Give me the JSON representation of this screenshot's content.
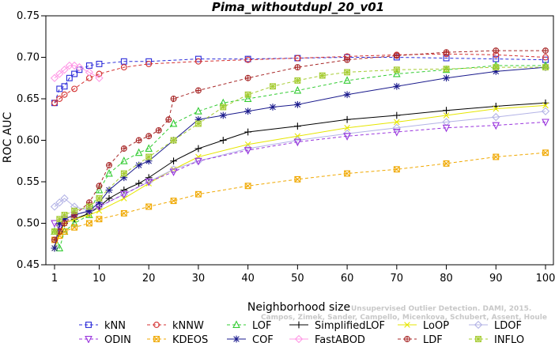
{
  "chart_data": {
    "type": "line",
    "title": "Pima_withoutdupl_20_v01",
    "xlabel": "Neighborhood size",
    "ylabel": "ROC AUC",
    "xlim": [
      1,
      100
    ],
    "ylim": [
      0.45,
      0.75
    ],
    "x_ticks": [
      1,
      10,
      20,
      30,
      40,
      50,
      60,
      70,
      80,
      90,
      100
    ],
    "y_ticks": [
      "0.45",
      "0.50",
      "0.55",
      "0.60",
      "0.65",
      "0.70",
      "0.75"
    ],
    "grid": false,
    "legend_position": "bottom",
    "citation": {
      "line1": "Unsupervised Outlier Detection. DAMI, 2015.",
      "line2": "Campos, Zimek, Sander, Campello, Micenkova, Schubert, Assent, Houle"
    },
    "series": [
      {
        "name": "kNN",
        "color": "#2b2bd9",
        "marker": "square",
        "dash": "4,3",
        "x": [
          1,
          2,
          3,
          4,
          5,
          6,
          8,
          10,
          15,
          20,
          30,
          40,
          50,
          60,
          70,
          80,
          90,
          100
        ],
        "y": [
          0.645,
          0.662,
          0.665,
          0.675,
          0.68,
          0.685,
          0.69,
          0.692,
          0.695,
          0.695,
          0.698,
          0.698,
          0.699,
          0.7,
          0.7,
          0.699,
          0.698,
          0.697
        ]
      },
      {
        "name": "kNNW",
        "color": "#d43030",
        "marker": "circle",
        "dash": "4,3",
        "x": [
          1,
          2,
          3,
          5,
          8,
          10,
          15,
          20,
          30,
          40,
          50,
          60,
          70,
          80,
          90,
          100
        ],
        "y": [
          0.645,
          0.65,
          0.655,
          0.662,
          0.675,
          0.68,
          0.688,
          0.692,
          0.695,
          0.697,
          0.699,
          0.701,
          0.703,
          0.704,
          0.703,
          0.7
        ]
      },
      {
        "name": "LOF",
        "color": "#33cc33",
        "marker": "triangle-up",
        "dash": "4,3",
        "x": [
          1,
          2,
          3,
          5,
          8,
          10,
          12,
          15,
          18,
          20,
          25,
          30,
          35,
          40,
          50,
          60,
          70,
          80,
          90,
          100
        ],
        "y": [
          0.49,
          0.47,
          0.49,
          0.5,
          0.51,
          0.54,
          0.56,
          0.575,
          0.585,
          0.59,
          0.62,
          0.635,
          0.645,
          0.65,
          0.66,
          0.672,
          0.68,
          0.685,
          0.69,
          0.69
        ]
      },
      {
        "name": "SimplifiedLOF",
        "color": "#000000",
        "marker": "plus",
        "dash": "",
        "x": [
          1,
          2,
          3,
          5,
          8,
          10,
          12,
          15,
          18,
          20,
          25,
          30,
          35,
          40,
          50,
          60,
          70,
          80,
          90,
          100
        ],
        "y": [
          0.47,
          0.49,
          0.5,
          0.505,
          0.512,
          0.52,
          0.53,
          0.54,
          0.548,
          0.555,
          0.575,
          0.59,
          0.6,
          0.61,
          0.617,
          0.625,
          0.63,
          0.636,
          0.641,
          0.645
        ]
      },
      {
        "name": "LoOP",
        "color": "#e6e600",
        "marker": "x",
        "dash": "",
        "x": [
          1,
          2,
          3,
          5,
          8,
          10,
          15,
          20,
          25,
          30,
          40,
          50,
          60,
          70,
          80,
          90,
          100
        ],
        "y": [
          0.47,
          0.485,
          0.5,
          0.505,
          0.51,
          0.515,
          0.53,
          0.548,
          0.565,
          0.58,
          0.595,
          0.605,
          0.615,
          0.622,
          0.63,
          0.638,
          0.642
        ]
      },
      {
        "name": "LDOF",
        "color": "#b3b3e6",
        "marker": "diamond",
        "dash": "",
        "x": [
          1,
          2,
          3,
          5,
          8,
          10,
          15,
          20,
          25,
          30,
          40,
          50,
          60,
          70,
          80,
          90,
          100
        ],
        "y": [
          0.52,
          0.525,
          0.53,
          0.52,
          0.515,
          0.52,
          0.535,
          0.55,
          0.565,
          0.575,
          0.59,
          0.6,
          0.608,
          0.615,
          0.622,
          0.628,
          0.635
        ]
      },
      {
        "name": "ODIN",
        "color": "#9933dd",
        "marker": "triangle-down",
        "dash": "4,3",
        "x": [
          1,
          2,
          3,
          5,
          8,
          10,
          15,
          20,
          25,
          30,
          40,
          50,
          60,
          70,
          80,
          90,
          100
        ],
        "y": [
          0.5,
          0.495,
          0.505,
          0.51,
          0.515,
          0.52,
          0.535,
          0.55,
          0.562,
          0.575,
          0.588,
          0.598,
          0.605,
          0.61,
          0.615,
          0.618,
          0.622
        ]
      },
      {
        "name": "KDEOS",
        "color": "#f0a800",
        "marker": "square-x",
        "dash": "4,3",
        "x": [
          1,
          2,
          3,
          5,
          8,
          10,
          15,
          20,
          25,
          30,
          40,
          50,
          60,
          70,
          80,
          90,
          100
        ],
        "y": [
          0.48,
          0.485,
          0.49,
          0.495,
          0.5,
          0.505,
          0.512,
          0.52,
          0.527,
          0.535,
          0.545,
          0.553,
          0.56,
          0.565,
          0.572,
          0.58,
          0.585
        ]
      },
      {
        "name": "COF",
        "color": "#1a1a8c",
        "marker": "star",
        "dash": "",
        "x": [
          1,
          2,
          3,
          5,
          8,
          10,
          12,
          15,
          18,
          20,
          25,
          30,
          35,
          40,
          45,
          50,
          60,
          70,
          80,
          90,
          100
        ],
        "y": [
          0.47,
          0.5,
          0.505,
          0.51,
          0.515,
          0.525,
          0.54,
          0.555,
          0.57,
          0.575,
          0.6,
          0.625,
          0.63,
          0.635,
          0.64,
          0.643,
          0.655,
          0.665,
          0.675,
          0.683,
          0.688
        ]
      },
      {
        "name": "FastABOD",
        "color": "#ff99e6",
        "marker": "diamond",
        "dash": "",
        "x": [
          1,
          2,
          3,
          4,
          5,
          6,
          8,
          10
        ],
        "y": [
          0.675,
          0.68,
          0.685,
          0.69,
          0.69,
          0.688,
          0.682,
          0.675
        ]
      },
      {
        "name": "LDF",
        "color": "#a82828",
        "marker": "circle-plus",
        "dash": "4,3",
        "x": [
          1,
          2,
          3,
          5,
          8,
          10,
          12,
          15,
          18,
          20,
          22,
          24,
          25,
          30,
          40,
          50,
          60,
          70,
          80,
          90,
          100
        ],
        "y": [
          0.48,
          0.49,
          0.5,
          0.51,
          0.525,
          0.545,
          0.57,
          0.59,
          0.6,
          0.605,
          0.612,
          0.625,
          0.65,
          0.66,
          0.675,
          0.688,
          0.697,
          0.702,
          0.706,
          0.708,
          0.708
        ]
      },
      {
        "name": "INFLO",
        "color": "#a6cc33",
        "marker": "square-star",
        "dash": "4,3",
        "x": [
          1,
          2,
          3,
          5,
          8,
          10,
          15,
          20,
          25,
          30,
          35,
          40,
          45,
          50,
          55,
          60,
          70,
          80,
          90,
          100
        ],
        "y": [
          0.49,
          0.505,
          0.51,
          0.515,
          0.52,
          0.53,
          0.56,
          0.58,
          0.6,
          0.62,
          0.64,
          0.655,
          0.665,
          0.672,
          0.678,
          0.682,
          0.685,
          0.686,
          0.688,
          0.688
        ]
      }
    ]
  }
}
